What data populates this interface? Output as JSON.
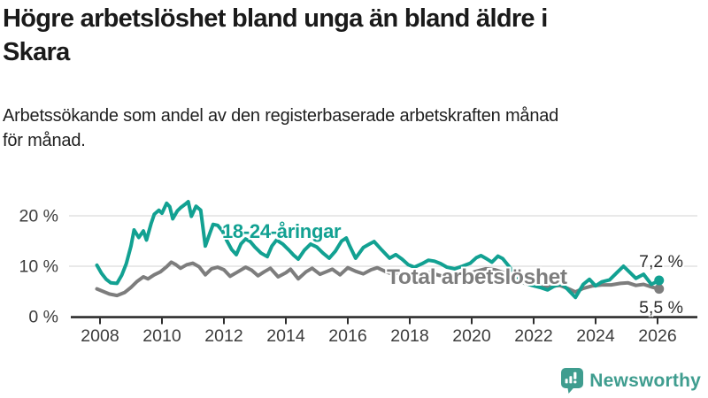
{
  "chart_data": {
    "type": "line",
    "title": "Högre arbetslöshet bland unga än bland äldre i\nSkara",
    "subtitle": "Arbetssökande som andel av den registerbaserade arbetskraften månad\nför månad.",
    "xlabel": "",
    "ylabel": "",
    "xlim": [
      2007.7,
      2026.6
    ],
    "ylim": [
      0,
      24
    ],
    "grid": "horizontal",
    "legend_position": "inline-labels",
    "x_ticks": [
      {
        "value": 2008,
        "label": "2008"
      },
      {
        "value": 2010,
        "label": "2010"
      },
      {
        "value": 2012,
        "label": "2012"
      },
      {
        "value": 2014,
        "label": "2014"
      },
      {
        "value": 2016,
        "label": "2016"
      },
      {
        "value": 2018,
        "label": "2018"
      },
      {
        "value": 2020,
        "label": "2020"
      },
      {
        "value": 2022,
        "label": "2022"
      },
      {
        "value": 2024,
        "label": "2024"
      },
      {
        "value": 2026,
        "label": "2026"
      }
    ],
    "y_ticks": [
      {
        "value": 0,
        "label": "0 %"
      },
      {
        "value": 10,
        "label": "10 %"
      },
      {
        "value": 20,
        "label": "20 %"
      }
    ],
    "series": [
      {
        "name": "18-24-åringar",
        "color": "#12A192",
        "end_label": "7,2 %",
        "end_value": 7.2,
        "points": [
          [
            2007.9,
            10.2
          ],
          [
            2008.05,
            8.6
          ],
          [
            2008.2,
            7.4
          ],
          [
            2008.35,
            6.7
          ],
          [
            2008.55,
            6.6
          ],
          [
            2008.7,
            8.2
          ],
          [
            2008.85,
            10.5
          ],
          [
            2009.0,
            14.0
          ],
          [
            2009.1,
            17.2
          ],
          [
            2009.25,
            15.7
          ],
          [
            2009.4,
            17.0
          ],
          [
            2009.5,
            15.2
          ],
          [
            2009.65,
            18.5
          ],
          [
            2009.75,
            20.3
          ],
          [
            2009.9,
            21.1
          ],
          [
            2010.0,
            20.5
          ],
          [
            2010.15,
            22.5
          ],
          [
            2010.25,
            21.8
          ],
          [
            2010.35,
            19.4
          ],
          [
            2010.5,
            21.0
          ],
          [
            2010.6,
            21.6
          ],
          [
            2010.75,
            22.3
          ],
          [
            2010.85,
            22.8
          ],
          [
            2010.95,
            19.9
          ],
          [
            2011.1,
            21.9
          ],
          [
            2011.25,
            21.1
          ],
          [
            2011.4,
            14.0
          ],
          [
            2011.55,
            16.6
          ],
          [
            2011.65,
            18.3
          ],
          [
            2011.8,
            18.1
          ],
          [
            2011.95,
            17.0
          ],
          [
            2012.1,
            15.0
          ],
          [
            2012.25,
            13.3
          ],
          [
            2012.4,
            12.3
          ],
          [
            2012.55,
            14.4
          ],
          [
            2012.7,
            15.4
          ],
          [
            2012.85,
            14.9
          ],
          [
            2013.0,
            13.8
          ],
          [
            2013.2,
            12.6
          ],
          [
            2013.4,
            11.9
          ],
          [
            2013.55,
            14.0
          ],
          [
            2013.7,
            15.2
          ],
          [
            2013.9,
            14.4
          ],
          [
            2014.1,
            13.2
          ],
          [
            2014.25,
            12.2
          ],
          [
            2014.4,
            11.4
          ],
          [
            2014.6,
            13.2
          ],
          [
            2014.8,
            14.4
          ],
          [
            2015.0,
            13.8
          ],
          [
            2015.2,
            12.6
          ],
          [
            2015.4,
            11.6
          ],
          [
            2015.6,
            13.0
          ],
          [
            2015.8,
            15.0
          ],
          [
            2015.95,
            15.6
          ],
          [
            2016.05,
            14.2
          ],
          [
            2016.25,
            11.6
          ],
          [
            2016.5,
            13.7
          ],
          [
            2016.7,
            14.4
          ],
          [
            2016.85,
            14.9
          ],
          [
            2017.1,
            13.2
          ],
          [
            2017.35,
            11.6
          ],
          [
            2017.55,
            12.3
          ],
          [
            2017.75,
            11.4
          ],
          [
            2017.95,
            10.3
          ],
          [
            2018.15,
            9.8
          ],
          [
            2018.4,
            10.5
          ],
          [
            2018.6,
            11.2
          ],
          [
            2018.8,
            11.0
          ],
          [
            2019.0,
            10.5
          ],
          [
            2019.2,
            9.8
          ],
          [
            2019.45,
            9.5
          ],
          [
            2019.7,
            10.0
          ],
          [
            2019.95,
            10.6
          ],
          [
            2020.15,
            11.7
          ],
          [
            2020.3,
            12.1
          ],
          [
            2020.5,
            11.4
          ],
          [
            2020.65,
            10.8
          ],
          [
            2020.85,
            12.0
          ],
          [
            2021.0,
            11.5
          ],
          [
            2021.2,
            10.0
          ],
          [
            2021.45,
            8.0
          ],
          [
            2021.7,
            6.7
          ],
          [
            2021.95,
            6.2
          ],
          [
            2022.2,
            5.8
          ],
          [
            2022.45,
            5.3
          ],
          [
            2022.65,
            6.0
          ],
          [
            2022.9,
            6.5
          ],
          [
            2023.1,
            5.4
          ],
          [
            2023.35,
            3.8
          ],
          [
            2023.6,
            6.4
          ],
          [
            2023.8,
            7.4
          ],
          [
            2024.0,
            6.1
          ],
          [
            2024.2,
            6.9
          ],
          [
            2024.45,
            7.3
          ],
          [
            2024.7,
            8.8
          ],
          [
            2024.9,
            10.0
          ],
          [
            2025.1,
            8.8
          ],
          [
            2025.3,
            7.6
          ],
          [
            2025.55,
            8.4
          ],
          [
            2025.8,
            6.4
          ],
          [
            2026.05,
            7.2
          ]
        ]
      },
      {
        "name": "Total arbetslöshet",
        "color": "#7D7D7D",
        "end_label": "5,5 %",
        "end_value": 5.5,
        "points": [
          [
            2007.9,
            5.5
          ],
          [
            2008.1,
            5.0
          ],
          [
            2008.3,
            4.5
          ],
          [
            2008.55,
            4.2
          ],
          [
            2008.8,
            4.8
          ],
          [
            2009.0,
            5.8
          ],
          [
            2009.2,
            7.0
          ],
          [
            2009.4,
            7.9
          ],
          [
            2009.55,
            7.5
          ],
          [
            2009.75,
            8.3
          ],
          [
            2009.95,
            8.9
          ],
          [
            2010.15,
            9.9
          ],
          [
            2010.3,
            10.8
          ],
          [
            2010.45,
            10.3
          ],
          [
            2010.6,
            9.6
          ],
          [
            2010.8,
            10.3
          ],
          [
            2011.0,
            10.6
          ],
          [
            2011.2,
            9.9
          ],
          [
            2011.4,
            8.3
          ],
          [
            2011.6,
            9.5
          ],
          [
            2011.8,
            9.8
          ],
          [
            2012.0,
            9.3
          ],
          [
            2012.2,
            8.0
          ],
          [
            2012.45,
            8.9
          ],
          [
            2012.7,
            9.8
          ],
          [
            2012.9,
            9.2
          ],
          [
            2013.1,
            8.1
          ],
          [
            2013.3,
            8.9
          ],
          [
            2013.5,
            9.6
          ],
          [
            2013.75,
            7.9
          ],
          [
            2014.0,
            8.7
          ],
          [
            2014.15,
            9.4
          ],
          [
            2014.4,
            7.5
          ],
          [
            2014.65,
            8.9
          ],
          [
            2014.85,
            9.6
          ],
          [
            2015.1,
            8.4
          ],
          [
            2015.3,
            8.9
          ],
          [
            2015.5,
            9.4
          ],
          [
            2015.75,
            8.3
          ],
          [
            2016.0,
            9.7
          ],
          [
            2016.25,
            9.0
          ],
          [
            2016.5,
            8.5
          ],
          [
            2016.75,
            9.3
          ],
          [
            2016.95,
            9.7
          ],
          [
            2017.2,
            9.0
          ],
          [
            2017.45,
            8.4
          ],
          [
            2017.65,
            8.8
          ],
          [
            2017.9,
            8.5
          ],
          [
            2018.15,
            8.0
          ],
          [
            2018.4,
            8.4
          ],
          [
            2018.65,
            8.7
          ],
          [
            2018.95,
            8.2
          ],
          [
            2019.25,
            7.8
          ],
          [
            2019.55,
            8.1
          ],
          [
            2019.85,
            8.4
          ],
          [
            2020.15,
            9.0
          ],
          [
            2020.45,
            9.5
          ],
          [
            2020.75,
            9.3
          ],
          [
            2021.05,
            8.7
          ],
          [
            2021.35,
            7.5
          ],
          [
            2021.65,
            6.7
          ],
          [
            2021.95,
            6.3
          ],
          [
            2022.25,
            5.9
          ],
          [
            2022.55,
            6.1
          ],
          [
            2022.85,
            6.2
          ],
          [
            2023.1,
            5.6
          ],
          [
            2023.35,
            4.9
          ],
          [
            2023.6,
            5.6
          ],
          [
            2023.9,
            6.1
          ],
          [
            2024.2,
            6.3
          ],
          [
            2024.5,
            6.3
          ],
          [
            2024.8,
            6.6
          ],
          [
            2025.05,
            6.7
          ],
          [
            2025.3,
            6.2
          ],
          [
            2025.55,
            6.4
          ],
          [
            2025.8,
            5.9
          ],
          [
            2026.05,
            5.5
          ]
        ]
      }
    ],
    "colors": {
      "axis": "#2d2d2d",
      "gridline": "#dcdcdc",
      "tick_text": "#3c3c3c"
    }
  },
  "logo": {
    "name": "Newsworthy",
    "color": "#3F9D8F"
  }
}
